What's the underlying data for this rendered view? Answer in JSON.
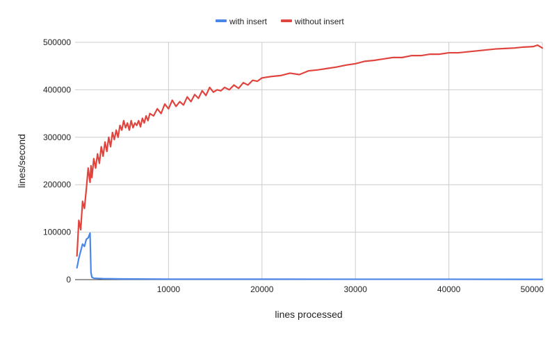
{
  "chart_data": {
    "type": "line",
    "title": "",
    "xlabel": "lines processed",
    "ylabel": "lines/second",
    "xlim": [
      0,
      50000
    ],
    "ylim": [
      0,
      500000
    ],
    "x_ticks": [
      10000,
      20000,
      30000,
      40000,
      50000
    ],
    "y_ticks": [
      0,
      100000,
      200000,
      300000,
      400000,
      500000
    ],
    "x_tick_labels": [
      "10000",
      "20000",
      "30000",
      "40000",
      "50000"
    ],
    "y_tick_labels": [
      "0",
      "100000",
      "200000",
      "300000",
      "400000",
      "500000"
    ],
    "grid": true,
    "legend_position": "top",
    "series": [
      {
        "name": "with insert",
        "color": "#4a86e8",
        "x": [
          200,
          400,
          600,
          800,
          1000,
          1200,
          1400,
          1600,
          1700,
          1800,
          2000,
          2500,
          3000,
          5000,
          10000,
          20000,
          30000,
          40000,
          50000
        ],
        "y": [
          25000,
          45000,
          60000,
          75000,
          70000,
          85000,
          88000,
          98000,
          15000,
          5000,
          3000,
          2500,
          2000,
          1500,
          1000,
          1000,
          800,
          800,
          500
        ]
      },
      {
        "name": "without insert",
        "color": "#e0443e",
        "x": [
          200,
          400,
          600,
          800,
          1000,
          1200,
          1400,
          1600,
          1700,
          1800,
          2000,
          2200,
          2400,
          2600,
          2800,
          3000,
          3200,
          3400,
          3600,
          3800,
          4000,
          4200,
          4400,
          4600,
          4800,
          5000,
          5200,
          5400,
          5600,
          5800,
          6000,
          6200,
          6400,
          6600,
          6800,
          7000,
          7200,
          7400,
          7600,
          7800,
          8000,
          8400,
          8800,
          9200,
          9600,
          10000,
          10400,
          10800,
          11200,
          11600,
          12000,
          12400,
          12800,
          13200,
          13600,
          14000,
          14400,
          14800,
          15200,
          15600,
          16000,
          16500,
          17000,
          17500,
          18000,
          18500,
          19000,
          19500,
          20000,
          21000,
          22000,
          23000,
          24000,
          25000,
          26000,
          27000,
          28000,
          29000,
          30000,
          31000,
          32000,
          33000,
          34000,
          35000,
          36000,
          37000,
          38000,
          39000,
          40000,
          41000,
          42000,
          43000,
          44000,
          45000,
          46000,
          47000,
          48000,
          49000,
          49500,
          50000
        ],
        "y": [
          50000,
          125000,
          105000,
          165000,
          150000,
          190000,
          235000,
          205000,
          240000,
          215000,
          255000,
          235000,
          265000,
          245000,
          280000,
          260000,
          290000,
          270000,
          300000,
          280000,
          310000,
          295000,
          315000,
          300000,
          325000,
          315000,
          335000,
          320000,
          330000,
          315000,
          335000,
          320000,
          330000,
          325000,
          335000,
          322000,
          340000,
          330000,
          345000,
          335000,
          350000,
          345000,
          360000,
          350000,
          370000,
          360000,
          378000,
          365000,
          375000,
          368000,
          385000,
          375000,
          390000,
          382000,
          398000,
          388000,
          405000,
          395000,
          400000,
          398000,
          405000,
          400000,
          410000,
          403000,
          415000,
          410000,
          420000,
          418000,
          425000,
          428000,
          430000,
          435000,
          432000,
          440000,
          442000,
          445000,
          448000,
          452000,
          455000,
          460000,
          462000,
          465000,
          468000,
          468000,
          472000,
          472000,
          475000,
          475000,
          478000,
          478000,
          480000,
          482000,
          484000,
          486000,
          487000,
          488000,
          490000,
          491000,
          494000,
          488000
        ]
      }
    ]
  }
}
